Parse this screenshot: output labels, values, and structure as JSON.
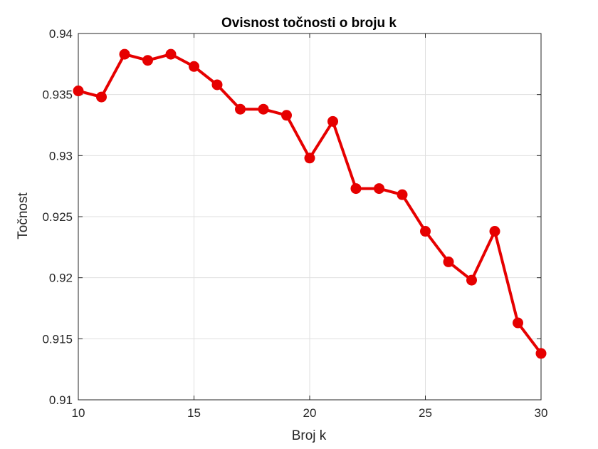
{
  "chart_data": {
    "type": "line",
    "title": "Ovisnost točnosti o broju k",
    "xlabel": "Broj k",
    "ylabel": "Točnost",
    "xlim": [
      10,
      30
    ],
    "ylim": [
      0.91,
      0.94
    ],
    "x_ticks": [
      10,
      15,
      20,
      25,
      30
    ],
    "y_ticks": [
      0.91,
      0.915,
      0.92,
      0.925,
      0.93,
      0.935,
      0.94
    ],
    "x_tick_labels": [
      "10",
      "15",
      "20",
      "25",
      "30"
    ],
    "y_tick_labels": [
      "0.91",
      "0.915",
      "0.92",
      "0.925",
      "0.93",
      "0.935",
      "0.94"
    ],
    "grid": true,
    "series": [
      {
        "color": "#e60000",
        "marker": "circle",
        "x": [
          10,
          11,
          12,
          13,
          14,
          15,
          16,
          17,
          18,
          19,
          20,
          21,
          22,
          23,
          24,
          25,
          26,
          27,
          28,
          29,
          30
        ],
        "y": [
          0.9353,
          0.9348,
          0.9383,
          0.9378,
          0.9383,
          0.9373,
          0.9358,
          0.9338,
          0.9338,
          0.9333,
          0.9298,
          0.9328,
          0.9273,
          0.9273,
          0.9268,
          0.9238,
          0.9213,
          0.9198,
          0.9238,
          0.9163,
          0.9138
        ]
      }
    ]
  }
}
